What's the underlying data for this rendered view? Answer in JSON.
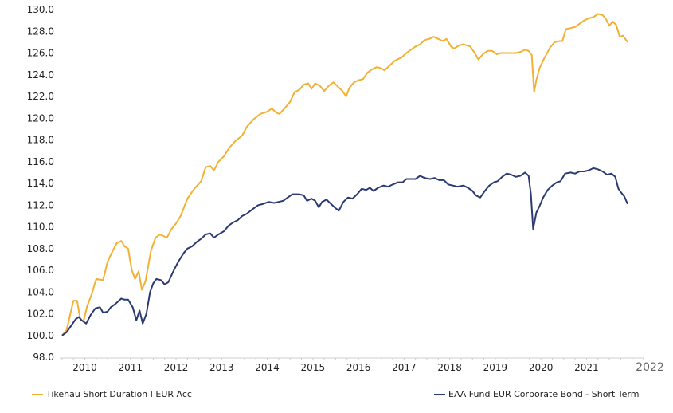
{
  "chart_data": {
    "type": "line",
    "title": "",
    "xlabel": "",
    "ylabel": "",
    "ylim": [
      98.0,
      130.0
    ],
    "yticks": [
      "98.0",
      "100.0",
      "102.0",
      "104.0",
      "106.0",
      "108.0",
      "110.0",
      "112.0",
      "114.0",
      "116.0",
      "118.0",
      "120.0",
      "122.0",
      "124.0",
      "126.0",
      "128.0",
      "130.0"
    ],
    "x_range": [
      2009.2,
      2022.0
    ],
    "x_tick_labels": [
      "2010",
      "2011",
      "2012",
      "2013",
      "2014",
      "2015",
      "2016",
      "2017",
      "2018",
      "2019",
      "2020",
      "2021",
      "2022"
    ],
    "grid": false,
    "legend_position": "bottom",
    "series": [
      {
        "name": "Tikehau Short Duration I EUR Acc",
        "color": "#F2B134",
        "points": [
          [
            2009.25,
            100.0
          ],
          [
            2009.35,
            100.5
          ],
          [
            2009.45,
            102.3
          ],
          [
            2009.5,
            103.2
          ],
          [
            2009.58,
            103.2
          ],
          [
            2009.65,
            101.5
          ],
          [
            2009.72,
            101.3
          ],
          [
            2009.8,
            102.7
          ],
          [
            2009.9,
            103.8
          ],
          [
            2010.0,
            105.2
          ],
          [
            2010.15,
            105.1
          ],
          [
            2010.25,
            106.8
          ],
          [
            2010.35,
            107.7
          ],
          [
            2010.45,
            108.5
          ],
          [
            2010.55,
            108.7
          ],
          [
            2010.62,
            108.2
          ],
          [
            2010.7,
            108.0
          ],
          [
            2010.78,
            106.0
          ],
          [
            2010.85,
            105.2
          ],
          [
            2010.93,
            105.9
          ],
          [
            2011.0,
            104.2
          ],
          [
            2011.08,
            105.0
          ],
          [
            2011.2,
            107.8
          ],
          [
            2011.3,
            109.0
          ],
          [
            2011.4,
            109.3
          ],
          [
            2011.55,
            109.0
          ],
          [
            2011.65,
            109.8
          ],
          [
            2011.75,
            110.3
          ],
          [
            2011.85,
            111.0
          ],
          [
            2012.0,
            112.6
          ],
          [
            2012.15,
            113.5
          ],
          [
            2012.3,
            114.2
          ],
          [
            2012.4,
            115.5
          ],
          [
            2012.5,
            115.6
          ],
          [
            2012.58,
            115.2
          ],
          [
            2012.68,
            116.0
          ],
          [
            2012.8,
            116.5
          ],
          [
            2012.92,
            117.3
          ],
          [
            2013.05,
            117.9
          ],
          [
            2013.2,
            118.4
          ],
          [
            2013.3,
            119.2
          ],
          [
            2013.45,
            119.9
          ],
          [
            2013.6,
            120.4
          ],
          [
            2013.75,
            120.6
          ],
          [
            2013.85,
            120.9
          ],
          [
            2013.95,
            120.5
          ],
          [
            2014.02,
            120.4
          ],
          [
            2014.15,
            121.0
          ],
          [
            2014.25,
            121.5
          ],
          [
            2014.35,
            122.4
          ],
          [
            2014.45,
            122.6
          ],
          [
            2014.55,
            123.1
          ],
          [
            2014.65,
            123.2
          ],
          [
            2014.72,
            122.7
          ],
          [
            2014.8,
            123.2
          ],
          [
            2014.9,
            123.0
          ],
          [
            2015.0,
            122.5
          ],
          [
            2015.1,
            123.0
          ],
          [
            2015.2,
            123.3
          ],
          [
            2015.3,
            122.9
          ],
          [
            2015.4,
            122.5
          ],
          [
            2015.48,
            122.0
          ],
          [
            2015.55,
            122.8
          ],
          [
            2015.65,
            123.3
          ],
          [
            2015.75,
            123.5
          ],
          [
            2015.85,
            123.6
          ],
          [
            2015.95,
            124.2
          ],
          [
            2016.05,
            124.5
          ],
          [
            2016.15,
            124.7
          ],
          [
            2016.25,
            124.6
          ],
          [
            2016.32,
            124.4
          ],
          [
            2016.42,
            124.8
          ],
          [
            2016.55,
            125.3
          ],
          [
            2016.7,
            125.6
          ],
          [
            2016.8,
            126.0
          ],
          [
            2016.9,
            126.3
          ],
          [
            2017.0,
            126.6
          ],
          [
            2017.1,
            126.8
          ],
          [
            2017.2,
            127.2
          ],
          [
            2017.3,
            127.3
          ],
          [
            2017.4,
            127.5
          ],
          [
            2017.5,
            127.3
          ],
          [
            2017.6,
            127.1
          ],
          [
            2017.68,
            127.3
          ],
          [
            2017.78,
            126.6
          ],
          [
            2017.85,
            126.4
          ],
          [
            2017.95,
            126.7
          ],
          [
            2018.05,
            126.8
          ],
          [
            2018.2,
            126.6
          ],
          [
            2018.3,
            126.0
          ],
          [
            2018.38,
            125.4
          ],
          [
            2018.48,
            125.9
          ],
          [
            2018.58,
            126.2
          ],
          [
            2018.68,
            126.2
          ],
          [
            2018.78,
            125.9
          ],
          [
            2018.88,
            126.0
          ],
          [
            2019.0,
            126.0
          ],
          [
            2019.1,
            126.0
          ],
          [
            2019.2,
            126.0
          ],
          [
            2019.3,
            126.1
          ],
          [
            2019.4,
            126.3
          ],
          [
            2019.48,
            126.2
          ],
          [
            2019.55,
            125.8
          ],
          [
            2019.6,
            122.4
          ],
          [
            2019.65,
            123.5
          ],
          [
            2019.72,
            124.6
          ],
          [
            2019.82,
            125.5
          ],
          [
            2019.95,
            126.5
          ],
          [
            2020.05,
            127.0
          ],
          [
            2020.15,
            127.1
          ],
          [
            2020.22,
            127.1
          ],
          [
            2020.3,
            128.2
          ],
          [
            2020.4,
            128.3
          ],
          [
            2020.5,
            128.4
          ],
          [
            2020.6,
            128.7
          ],
          [
            2020.7,
            129.0
          ],
          [
            2020.8,
            129.2
          ],
          [
            2020.9,
            129.3
          ],
          [
            2021.0,
            129.6
          ],
          [
            2021.1,
            129.5
          ],
          [
            2021.18,
            129.1
          ],
          [
            2021.25,
            128.5
          ],
          [
            2021.32,
            128.9
          ],
          [
            2021.4,
            128.6
          ],
          [
            2021.48,
            127.5
          ],
          [
            2021.55,
            127.6
          ],
          [
            2021.65,
            127.0
          ]
        ]
      },
      {
        "name": "EAA Fund EUR Corporate Bond - Short Term",
        "color": "#2B3A73",
        "points": [
          [
            2009.25,
            100.0
          ],
          [
            2009.35,
            100.3
          ],
          [
            2009.45,
            100.9
          ],
          [
            2009.55,
            101.5
          ],
          [
            2009.62,
            101.7
          ],
          [
            2009.68,
            101.4
          ],
          [
            2009.78,
            101.1
          ],
          [
            2009.88,
            101.9
          ],
          [
            2009.98,
            102.5
          ],
          [
            2010.08,
            102.6
          ],
          [
            2010.15,
            102.1
          ],
          [
            2010.25,
            102.2
          ],
          [
            2010.32,
            102.6
          ],
          [
            2010.42,
            102.9
          ],
          [
            2010.55,
            103.4
          ],
          [
            2010.62,
            103.3
          ],
          [
            2010.7,
            103.3
          ],
          [
            2010.8,
            102.6
          ],
          [
            2010.88,
            101.4
          ],
          [
            2010.95,
            102.3
          ],
          [
            2011.02,
            101.1
          ],
          [
            2011.1,
            102.0
          ],
          [
            2011.18,
            104.0
          ],
          [
            2011.25,
            104.8
          ],
          [
            2011.32,
            105.2
          ],
          [
            2011.42,
            105.1
          ],
          [
            2011.5,
            104.7
          ],
          [
            2011.58,
            104.9
          ],
          [
            2011.7,
            106.0
          ],
          [
            2011.8,
            106.8
          ],
          [
            2011.92,
            107.6
          ],
          [
            2012.0,
            108.0
          ],
          [
            2012.1,
            108.2
          ],
          [
            2012.2,
            108.6
          ],
          [
            2012.3,
            108.9
          ],
          [
            2012.4,
            109.3
          ],
          [
            2012.5,
            109.4
          ],
          [
            2012.58,
            109.0
          ],
          [
            2012.68,
            109.3
          ],
          [
            2012.8,
            109.6
          ],
          [
            2012.9,
            110.1
          ],
          [
            2013.0,
            110.4
          ],
          [
            2013.1,
            110.6
          ],
          [
            2013.2,
            111.0
          ],
          [
            2013.3,
            111.2
          ],
          [
            2013.42,
            111.6
          ],
          [
            2013.55,
            112.0
          ],
          [
            2013.65,
            112.1
          ],
          [
            2013.78,
            112.3
          ],
          [
            2013.9,
            112.2
          ],
          [
            2014.0,
            112.3
          ],
          [
            2014.1,
            112.4
          ],
          [
            2014.2,
            112.7
          ],
          [
            2014.3,
            113.0
          ],
          [
            2014.45,
            113.0
          ],
          [
            2014.55,
            112.9
          ],
          [
            2014.62,
            112.4
          ],
          [
            2014.72,
            112.6
          ],
          [
            2014.8,
            112.4
          ],
          [
            2014.88,
            111.8
          ],
          [
            2014.95,
            112.3
          ],
          [
            2015.05,
            112.5
          ],
          [
            2015.15,
            112.1
          ],
          [
            2015.25,
            111.7
          ],
          [
            2015.32,
            111.5
          ],
          [
            2015.42,
            112.3
          ],
          [
            2015.52,
            112.7
          ],
          [
            2015.62,
            112.6
          ],
          [
            2015.72,
            113.0
          ],
          [
            2015.82,
            113.5
          ],
          [
            2015.92,
            113.4
          ],
          [
            2016.0,
            113.6
          ],
          [
            2016.08,
            113.3
          ],
          [
            2016.18,
            113.6
          ],
          [
            2016.3,
            113.8
          ],
          [
            2016.4,
            113.7
          ],
          [
            2016.5,
            113.9
          ],
          [
            2016.62,
            114.1
          ],
          [
            2016.72,
            114.1
          ],
          [
            2016.8,
            114.4
          ],
          [
            2016.9,
            114.4
          ],
          [
            2017.0,
            114.4
          ],
          [
            2017.1,
            114.7
          ],
          [
            2017.2,
            114.5
          ],
          [
            2017.32,
            114.4
          ],
          [
            2017.42,
            114.5
          ],
          [
            2017.52,
            114.3
          ],
          [
            2017.62,
            114.3
          ],
          [
            2017.72,
            113.9
          ],
          [
            2017.82,
            113.8
          ],
          [
            2017.92,
            113.7
          ],
          [
            2018.05,
            113.8
          ],
          [
            2018.15,
            113.6
          ],
          [
            2018.25,
            113.3
          ],
          [
            2018.32,
            112.9
          ],
          [
            2018.42,
            112.7
          ],
          [
            2018.52,
            113.3
          ],
          [
            2018.62,
            113.8
          ],
          [
            2018.72,
            114.1
          ],
          [
            2018.8,
            114.2
          ],
          [
            2018.9,
            114.6
          ],
          [
            2019.0,
            114.9
          ],
          [
            2019.1,
            114.8
          ],
          [
            2019.2,
            114.6
          ],
          [
            2019.3,
            114.7
          ],
          [
            2019.4,
            115.0
          ],
          [
            2019.48,
            114.7
          ],
          [
            2019.53,
            113.0
          ],
          [
            2019.58,
            109.8
          ],
          [
            2019.65,
            111.3
          ],
          [
            2019.72,
            111.9
          ],
          [
            2019.8,
            112.7
          ],
          [
            2019.9,
            113.4
          ],
          [
            2020.0,
            113.8
          ],
          [
            2020.1,
            114.1
          ],
          [
            2020.18,
            114.2
          ],
          [
            2020.28,
            114.9
          ],
          [
            2020.4,
            115.0
          ],
          [
            2020.5,
            114.9
          ],
          [
            2020.6,
            115.1
          ],
          [
            2020.7,
            115.1
          ],
          [
            2020.8,
            115.2
          ],
          [
            2020.9,
            115.4
          ],
          [
            2021.0,
            115.3
          ],
          [
            2021.1,
            115.1
          ],
          [
            2021.2,
            114.8
          ],
          [
            2021.3,
            114.9
          ],
          [
            2021.38,
            114.6
          ],
          [
            2021.45,
            113.5
          ],
          [
            2021.52,
            113.1
          ],
          [
            2021.58,
            112.8
          ],
          [
            2021.65,
            112.1
          ]
        ]
      }
    ]
  }
}
